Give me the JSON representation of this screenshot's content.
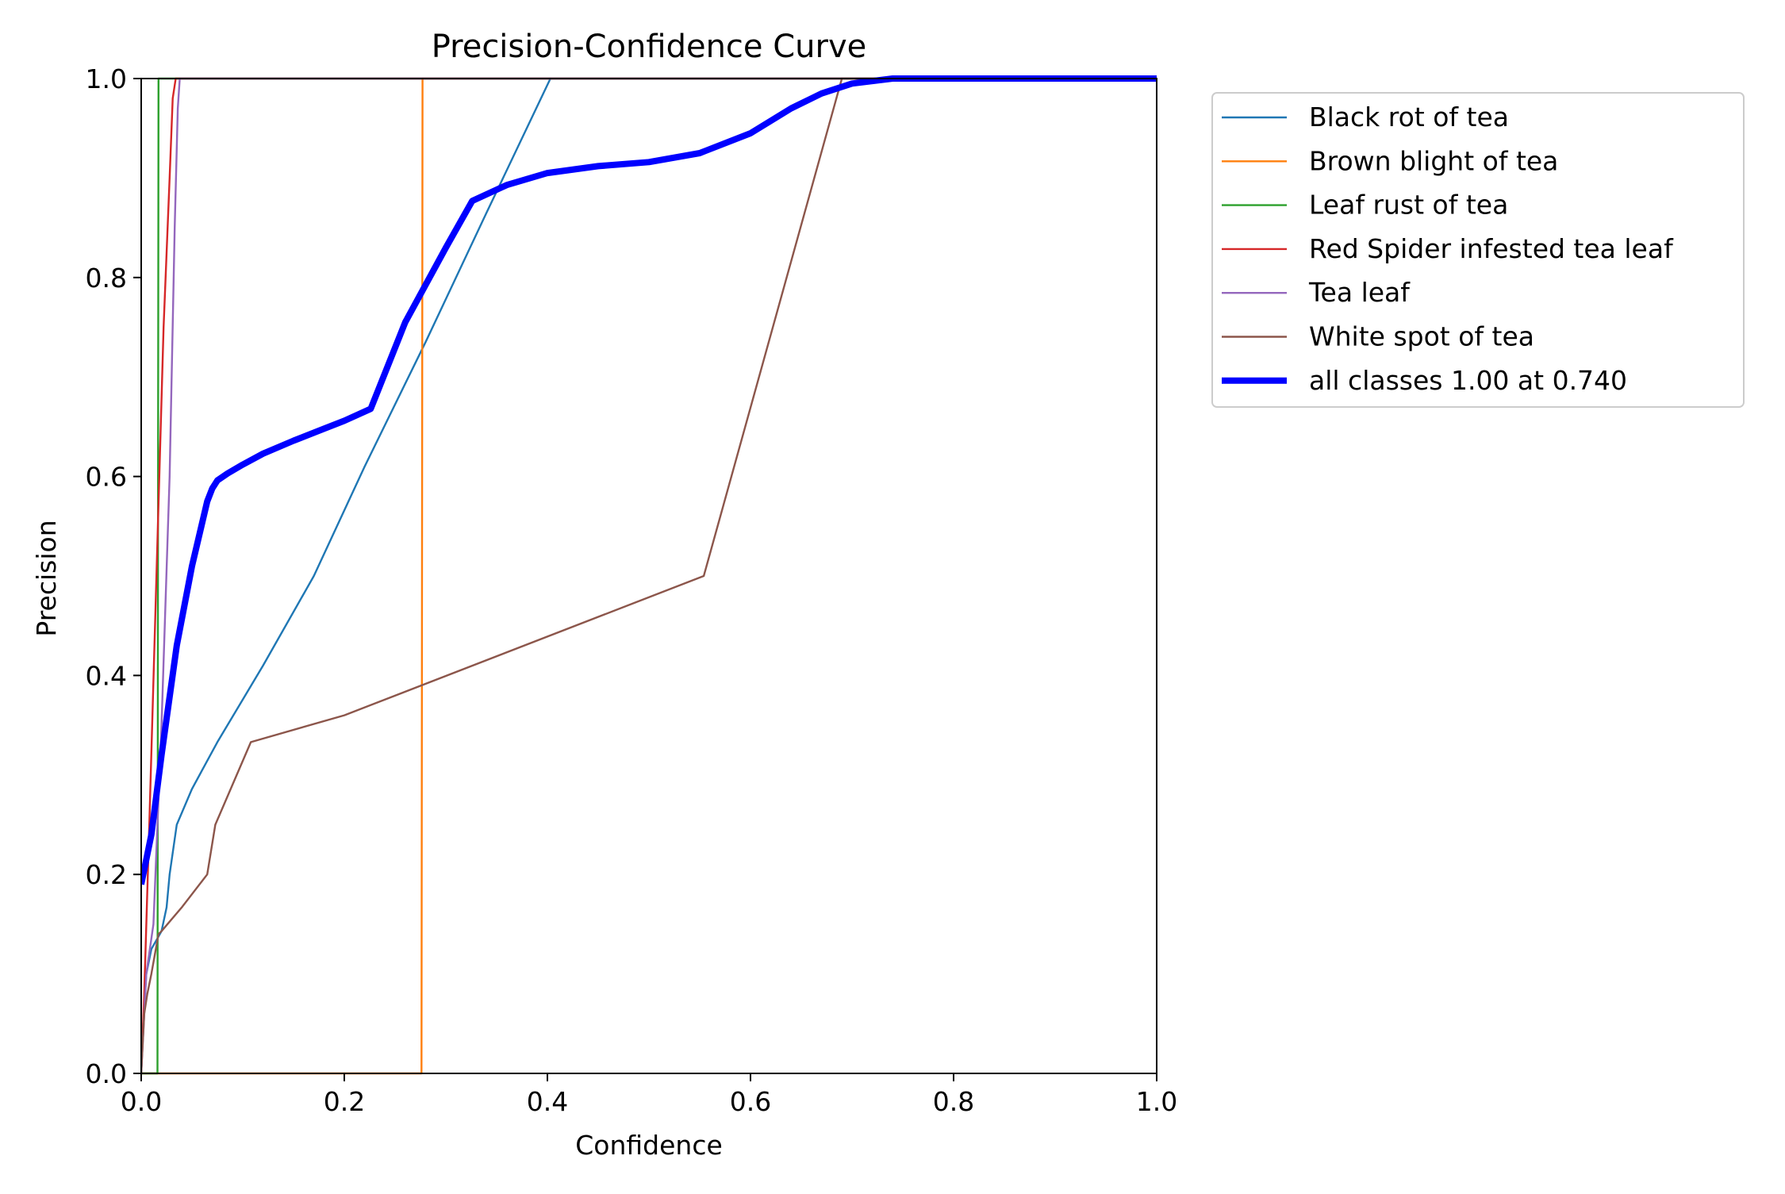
{
  "chart_data": {
    "type": "line",
    "title": "Precision-Confidence Curve",
    "xlabel": "Confidence",
    "ylabel": "Precision",
    "xlim": [
      0,
      1
    ],
    "ylim": [
      0,
      1
    ],
    "xticks": [
      "0.0",
      "0.2",
      "0.4",
      "0.6",
      "0.8",
      "1.0"
    ],
    "yticks": [
      "0.0",
      "0.2",
      "0.4",
      "0.6",
      "0.8",
      "1.0"
    ],
    "grid": false,
    "legend_position": "outside-right-top",
    "series": [
      {
        "name": "Black rot of tea",
        "color": "#1f77b4",
        "emphasis": false,
        "x": [
          0.0,
          0.002,
          0.005,
          0.01,
          0.02,
          0.025,
          0.028,
          0.035,
          0.05,
          0.075,
          0.12,
          0.17,
          0.22,
          0.28,
          0.34,
          0.403,
          0.45,
          0.6,
          0.8,
          1.0
        ],
        "y": [
          0.0,
          0.05,
          0.1,
          0.125,
          0.143,
          0.167,
          0.2,
          0.25,
          0.286,
          0.333,
          0.41,
          0.5,
          0.61,
          0.735,
          0.865,
          1.0,
          1.0,
          1.0,
          1.0,
          1.0
        ]
      },
      {
        "name": "Brown blight of tea",
        "color": "#ff7f0e",
        "emphasis": false,
        "x": [
          0.0,
          0.1,
          0.2,
          0.276,
          0.277,
          0.4,
          0.6,
          0.8,
          1.0
        ],
        "y": [
          0.0,
          0.0,
          0.0,
          0.0,
          1.0,
          1.0,
          1.0,
          1.0,
          1.0
        ]
      },
      {
        "name": "Leaf rust of tea",
        "color": "#2ca02c",
        "emphasis": false,
        "x": [
          0.0,
          0.005,
          0.006,
          0.016,
          0.0165,
          0.017,
          0.2,
          0.4,
          0.6,
          0.8,
          1.0
        ],
        "y": [
          0.0,
          0.0,
          0.0,
          0.0,
          0.5,
          1.0,
          1.0,
          1.0,
          1.0,
          1.0,
          1.0
        ]
      },
      {
        "name": "Red Spider infested tea leaf",
        "color": "#d62728",
        "emphasis": false,
        "x": [
          0.0,
          0.003,
          0.008,
          0.015,
          0.022,
          0.028,
          0.031,
          0.034,
          0.1,
          0.4,
          0.7,
          1.0
        ],
        "y": [
          0.0,
          0.08,
          0.25,
          0.5,
          0.75,
          0.9,
          0.98,
          1.0,
          1.0,
          1.0,
          1.0,
          1.0
        ]
      },
      {
        "name": "Tea leaf",
        "color": "#9467bd",
        "emphasis": false,
        "x": [
          0.0,
          0.005,
          0.012,
          0.02,
          0.028,
          0.033,
          0.036,
          0.038,
          0.1,
          0.4,
          0.7,
          1.0
        ],
        "y": [
          0.0,
          0.1,
          0.15,
          0.35,
          0.6,
          0.85,
          0.97,
          1.0,
          1.0,
          1.0,
          1.0,
          1.0
        ]
      },
      {
        "name": "White spot of tea",
        "color": "#8c564b",
        "emphasis": false,
        "x": [
          0.0,
          0.003,
          0.006,
          0.01,
          0.017,
          0.02,
          0.04,
          0.065,
          0.073,
          0.108,
          0.2,
          0.554,
          0.69,
          0.8,
          1.0
        ],
        "y": [
          0.0,
          0.06,
          0.08,
          0.1,
          0.14,
          0.143,
          0.167,
          0.2,
          0.25,
          0.333,
          0.36,
          0.5,
          1.0,
          1.0,
          1.0
        ]
      },
      {
        "name": "all classes 1.00 at 0.740",
        "color": "#0000ff",
        "emphasis": true,
        "x": [
          0.0,
          0.01,
          0.02,
          0.035,
          0.05,
          0.065,
          0.07,
          0.075,
          0.085,
          0.1,
          0.12,
          0.15,
          0.18,
          0.2,
          0.226,
          0.26,
          0.3,
          0.326,
          0.36,
          0.4,
          0.45,
          0.5,
          0.55,
          0.6,
          0.64,
          0.67,
          0.7,
          0.74,
          0.8,
          0.9,
          1.0
        ],
        "y": [
          0.19,
          0.24,
          0.32,
          0.43,
          0.51,
          0.575,
          0.588,
          0.596,
          0.603,
          0.612,
          0.623,
          0.636,
          0.648,
          0.656,
          0.668,
          0.755,
          0.83,
          0.877,
          0.893,
          0.905,
          0.912,
          0.916,
          0.925,
          0.945,
          0.97,
          0.985,
          0.995,
          1.0,
          1.0,
          1.0,
          1.0
        ]
      }
    ]
  }
}
